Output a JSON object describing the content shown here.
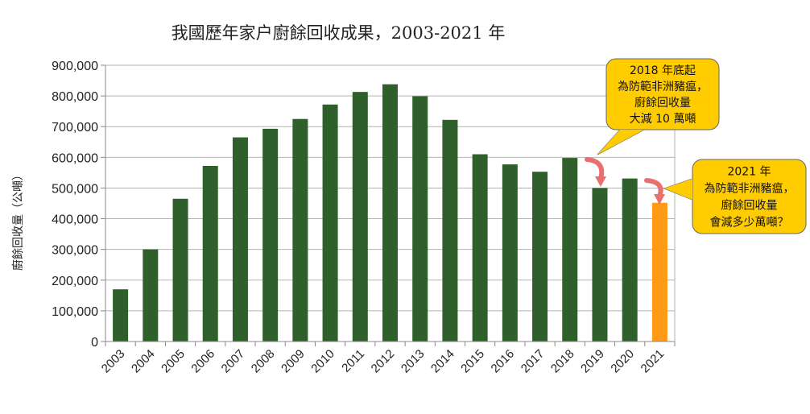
{
  "chart_data": {
    "type": "bar",
    "title": "我國歷年家户廚餘回收成果，2003-2021 年",
    "xlabel": "",
    "ylabel": "廚餘回收量（公噸）",
    "ylim": [
      0,
      900000
    ],
    "yticks": [
      "0",
      "100,000",
      "200,000",
      "300,000",
      "400,000",
      "500,000",
      "600,000",
      "700,000",
      "800,000",
      "900,000"
    ],
    "grid": true,
    "categories": [
      "2003",
      "2004",
      "2005",
      "2006",
      "2007",
      "2008",
      "2009",
      "2010",
      "2011",
      "2012",
      "2013",
      "2014",
      "2015",
      "2016",
      "2017",
      "2018",
      "2019",
      "2020",
      "2021"
    ],
    "values": [
      170000,
      300000,
      465000,
      572000,
      665000,
      693000,
      725000,
      772000,
      813000,
      838000,
      799000,
      722000,
      610000,
      577000,
      553000,
      598000,
      500000,
      531000,
      452000
    ],
    "colors": {
      "default": "#2f5f2a",
      "highlight": "#ff9a17",
      "highlight_category": "2021",
      "callout_fill": "#ffcc00",
      "arrow": "#e87070"
    },
    "annotations": [
      {
        "lines": [
          "2018 年底起",
          "為防範非洲豬瘟，",
          "廚餘回收量",
          "大減 10 萬噸"
        ]
      },
      {
        "lines": [
          "2021 年",
          "為防範非洲豬瘟，",
          "廚餘回收量",
          "會減多少萬噸？"
        ]
      }
    ]
  }
}
